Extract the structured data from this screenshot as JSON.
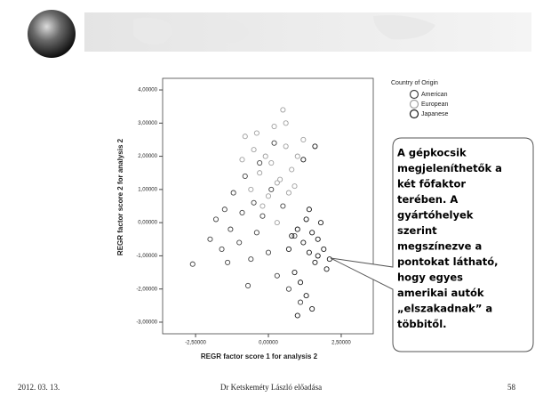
{
  "chart_data": {
    "type": "scatter",
    "x_label": "REGR factor score   1 for analysis 2",
    "y_label": "REGR factor score   2 for analysis 2",
    "legend_title": "Country of Origin",
    "xlim": [
      -3.63,
      3.6
    ],
    "ylim": [
      -3.35,
      4.35
    ],
    "xticks": [
      {
        "value": -2.5,
        "label": "-2,50000"
      },
      {
        "value": 0,
        "label": "0,00000"
      },
      {
        "value": 2.5,
        "label": "2,50000"
      }
    ],
    "yticks": [
      {
        "value": -3,
        "label": "-3,00000"
      },
      {
        "value": -2,
        "label": "-2,00000"
      },
      {
        "value": -1,
        "label": "-1,00000"
      },
      {
        "value": 0,
        "label": "0,00000"
      },
      {
        "value": 1,
        "label": "1,00000"
      },
      {
        "value": 2,
        "label": "2,00000"
      },
      {
        "value": 3,
        "label": "3,00000"
      },
      {
        "value": 4,
        "label": "4,00000"
      }
    ],
    "series": [
      {
        "name": "American",
        "color": "#444444",
        "x": [
          -2.0,
          -1.8,
          -1.6,
          -1.5,
          -1.3,
          -1.2,
          -1.0,
          -0.9,
          -0.8,
          -0.6,
          -0.5,
          -0.4,
          -0.3,
          -0.2,
          0.0,
          0.1,
          0.3,
          0.5,
          0.7,
          0.9,
          1.1,
          -1.4,
          -0.7,
          0.2,
          -2.6
        ],
        "values": [
          -0.5,
          0.1,
          -0.8,
          0.4,
          -0.2,
          0.9,
          -0.6,
          0.3,
          1.4,
          -1.1,
          0.6,
          -0.3,
          1.8,
          0.2,
          -0.9,
          1.0,
          -1.6,
          0.5,
          -2.0,
          -0.4,
          -2.4,
          -1.2,
          -1.9,
          2.4,
          -1.25
        ]
      },
      {
        "name": "European",
        "color": "#a0a0a0",
        "x": [
          -0.8,
          -0.5,
          -0.3,
          -0.1,
          0.0,
          0.2,
          0.3,
          0.5,
          0.6,
          0.8,
          1.0,
          1.2,
          -0.6,
          -0.2,
          0.1,
          0.4,
          0.7,
          -0.4,
          0.3,
          0.9,
          0.6,
          -0.9
        ],
        "values": [
          2.6,
          2.2,
          1.5,
          2.0,
          0.8,
          2.9,
          1.2,
          3.4,
          2.3,
          1.6,
          2.0,
          2.5,
          1.0,
          0.5,
          1.8,
          1.3,
          0.9,
          2.7,
          0.0,
          1.1,
          3.0,
          1.9
        ]
      },
      {
        "name": "Japanese",
        "color": "#1a1a1a",
        "x": [
          1.0,
          1.2,
          1.3,
          1.4,
          1.5,
          1.6,
          1.7,
          1.8,
          1.9,
          2.0,
          1.1,
          1.3,
          1.5,
          1.7,
          0.8,
          0.9,
          1.4,
          1.6,
          2.1,
          1.2,
          1.0,
          0.7
        ],
        "values": [
          -0.2,
          -0.6,
          0.1,
          -0.9,
          -0.3,
          -1.2,
          -0.5,
          0.0,
          -0.8,
          -1.4,
          -1.8,
          -2.2,
          -2.6,
          -1.0,
          -0.4,
          -1.5,
          0.4,
          2.3,
          -1.1,
          1.9,
          -2.8,
          -0.8
        ]
      }
    ]
  },
  "callout": {
    "lines": [
      "A gépkocsik",
      "megjeleníthetők a",
      "két főfaktor",
      "terében. A",
      "gyártóhelyek",
      "szerint",
      "megszínezve a",
      "pontokat látható,",
      "hogy egyes",
      "amerikai autók",
      "„elszakadnak” a",
      "többitől."
    ]
  },
  "footer": {
    "date": "2012. 03. 13.",
    "author": "Dr Ketskeméty László előadása",
    "page": "58"
  }
}
